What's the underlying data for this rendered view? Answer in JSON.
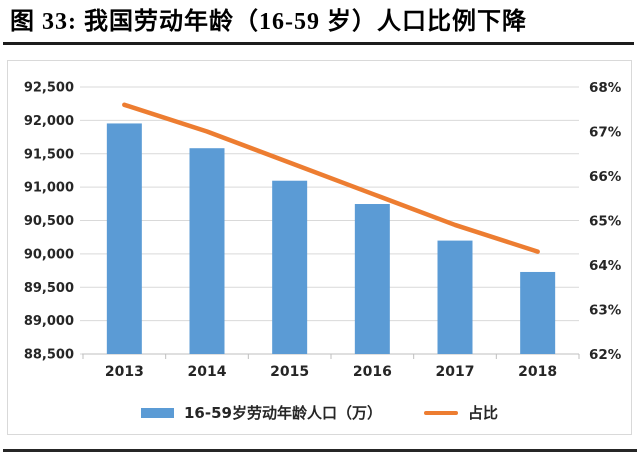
{
  "figure": {
    "title": "图 33:  我国劳动年龄（16-59 岁）人口比例下降"
  },
  "colors": {
    "bar": "#5B9BD5",
    "line": "#ED7D31",
    "grid": "#D9D9D9",
    "axis_line": "#BFBFBF",
    "axis_text": "#262626",
    "title_text": "#000000",
    "chart_border": "#D9D9D9",
    "rule": "#1C1C1C"
  },
  "chart_data": {
    "type": "bar",
    "combo": "bar+line, dual axis",
    "title": "图 33:  我国劳动年龄（16-59 岁）人口比例下降",
    "categories": [
      "2013",
      "2014",
      "2015",
      "2016",
      "2017",
      "2018"
    ],
    "series": [
      {
        "name": "16-59岁劳动年龄人口（万）",
        "type": "bar",
        "axis": "left",
        "color": "#5B9BD5",
        "values": [
          91954,
          91583,
          91096,
          90747,
          90199,
          89729
        ]
      },
      {
        "name": "占比",
        "type": "line",
        "axis": "right",
        "color": "#ED7D31",
        "values": [
          67.6,
          67.0,
          66.3,
          65.6,
          64.9,
          64.3
        ]
      }
    ],
    "left_axis": {
      "min": 88500,
      "max": 92500,
      "step": 500,
      "tick_labels": [
        "92,500",
        "92,000",
        "91,500",
        "91,000",
        "90,500",
        "90,000",
        "89,500",
        "89,000",
        "88,500"
      ]
    },
    "right_axis": {
      "min": 62,
      "max": 68,
      "step": 1,
      "tick_labels": [
        "68%",
        "67%",
        "66%",
        "65%",
        "64%",
        "63%",
        "62%"
      ]
    },
    "legend": [
      {
        "label": "16-59岁劳动年龄人口（万）",
        "swatch": "bar"
      },
      {
        "label": "占比",
        "swatch": "line"
      }
    ],
    "grid": true,
    "legend_position": "bottom",
    "xlabel": "",
    "ylabel": ""
  }
}
